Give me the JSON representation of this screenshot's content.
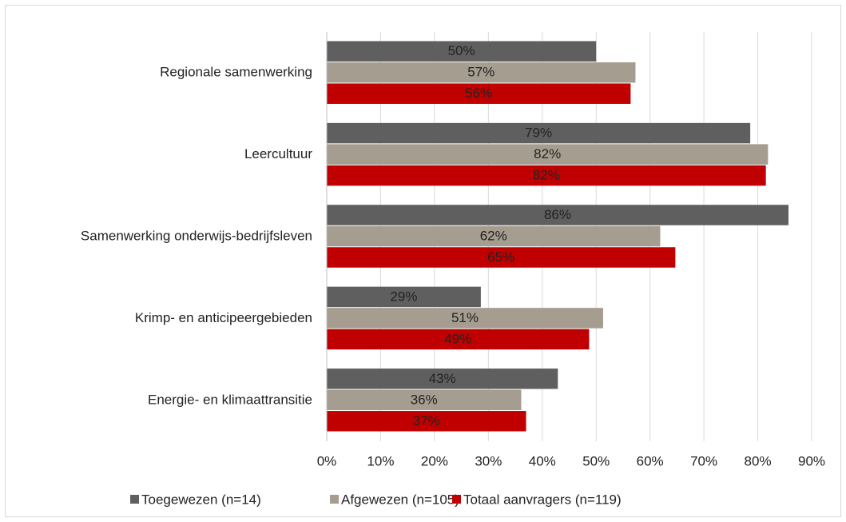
{
  "chart_data": {
    "type": "hbar",
    "categories": [
      "Regionale samenwerking",
      "Leercultuur",
      "Samenwerking onderwijs-bedrijfsleven",
      "Krimp- en anticipeergebieden",
      "Energie- en klimaattransitie"
    ],
    "series": [
      {
        "name": "Toegewezen (n=14)",
        "color": "#5f5f5f",
        "values": [
          50.0,
          78.6,
          85.7,
          28.6,
          42.9
        ],
        "value_labels": [
          "50%",
          "79%",
          "86%",
          "29%",
          "43%"
        ]
      },
      {
        "name": "Afgewezen (n=105)",
        "color": "#a59d8f",
        "values": [
          57.3,
          81.9,
          61.9,
          51.3,
          36.1
        ],
        "value_labels": [
          "57%",
          "82%",
          "62%",
          "51%",
          "36%"
        ]
      },
      {
        "name": "Totaal aanvragers (n=119)",
        "color": "#c00000",
        "values": [
          56.4,
          81.5,
          64.7,
          48.7,
          37.0
        ],
        "value_labels": [
          "56%",
          "82%",
          "65%",
          "49%",
          "37%"
        ]
      }
    ],
    "xlim": [
      0,
      90
    ],
    "xticks": [
      {
        "value": 0,
        "label": "0%"
      },
      {
        "value": 10,
        "label": "10%"
      },
      {
        "value": 20,
        "label": "20%"
      },
      {
        "value": 30,
        "label": "30%"
      },
      {
        "value": 40,
        "label": "40%"
      },
      {
        "value": 50,
        "label": "50%"
      },
      {
        "value": 60,
        "label": "60%"
      },
      {
        "value": 70,
        "label": "70%"
      },
      {
        "value": 80,
        "label": "80%"
      },
      {
        "value": 90,
        "label": "90%"
      }
    ],
    "grid": true,
    "legend": "bottom"
  }
}
